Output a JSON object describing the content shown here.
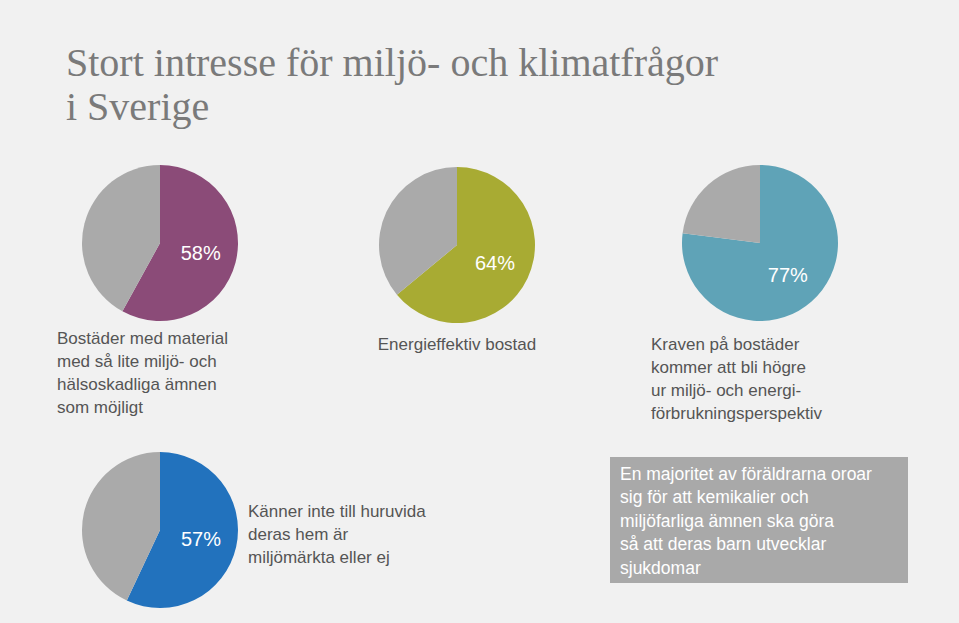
{
  "title": [
    "Stort intresse för miljö- och klimatfrågor",
    "i Sverige"
  ],
  "chart_data": [
    {
      "type": "pie",
      "title": [
        "Bostäder med material",
        "med så lite miljö- och",
        "hälsoskadliga ämnen",
        "som möjligt"
      ],
      "values": [
        58,
        42
      ],
      "value_labels": [
        "58%",
        null
      ],
      "colors": [
        "#8b4b78",
        "#aaaaaa"
      ],
      "data_labels": true
    },
    {
      "type": "pie",
      "title": [
        "Energieffektiv bostad"
      ],
      "values": [
        64,
        36
      ],
      "value_labels": [
        "64%",
        null
      ],
      "colors": [
        "#a8ab33",
        "#aaaaaa"
      ],
      "data_labels": true
    },
    {
      "type": "pie",
      "title": [
        "Kraven på bostäder",
        "kommer att bli högre",
        "ur miljö- och energi-",
        "förbrukningsperspektiv"
      ],
      "values": [
        77,
        23
      ],
      "value_labels": [
        "77%",
        null
      ],
      "colors": [
        "#5fa3b7",
        "#aaaaaa"
      ],
      "data_labels": true
    },
    {
      "type": "pie",
      "title": [
        "Känner inte till huruvida",
        "deras hem är",
        "miljömärkta eller ej"
      ],
      "values": [
        57,
        43
      ],
      "value_labels": [
        "57%",
        null
      ],
      "colors": [
        "#2272bd",
        "#aaaaaa"
      ],
      "data_labels": true
    }
  ],
  "note": [
    "En majoritet av föräldrarna oroar",
    "sig för att kemikalier och",
    "miljöfarliga ämnen ska göra",
    "så att deras barn utvecklar",
    "sjukdomar"
  ]
}
